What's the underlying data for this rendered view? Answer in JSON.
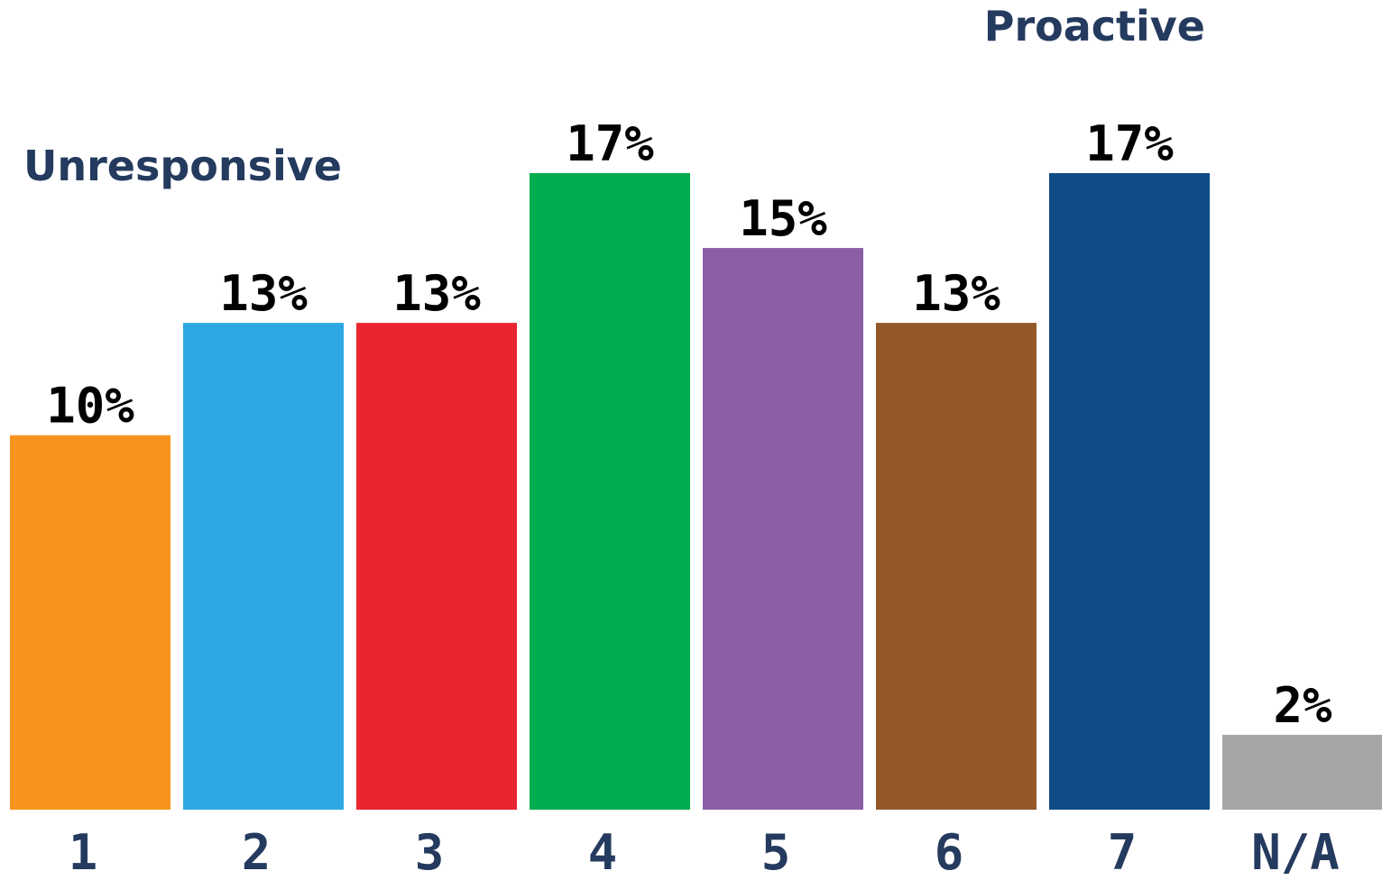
{
  "chart_data": {
    "type": "bar",
    "categories": [
      "1",
      "2",
      "3",
      "4",
      "5",
      "6",
      "7",
      "N/A"
    ],
    "values": [
      10,
      13,
      13,
      17,
      15,
      13,
      17,
      2
    ],
    "value_labels": [
      "10%",
      "13%",
      "13%",
      "17%",
      "15%",
      "13%",
      "17%",
      "2%"
    ],
    "bar_colors": [
      "#f7941d",
      "#2ea8e2",
      "#ea2530",
      "#00ad4e",
      "#8c5fa5",
      "#945829",
      "#0f4c87",
      "#a6a6a6"
    ],
    "title": "",
    "xlabel": "",
    "ylabel": "",
    "ylim": [
      0,
      17
    ],
    "grid": false,
    "annotations": [
      {
        "text": "Unresponsive",
        "near_category": "1"
      },
      {
        "text": "Proactive",
        "near_category": "7"
      }
    ],
    "annotation_color": "#243a5e"
  }
}
